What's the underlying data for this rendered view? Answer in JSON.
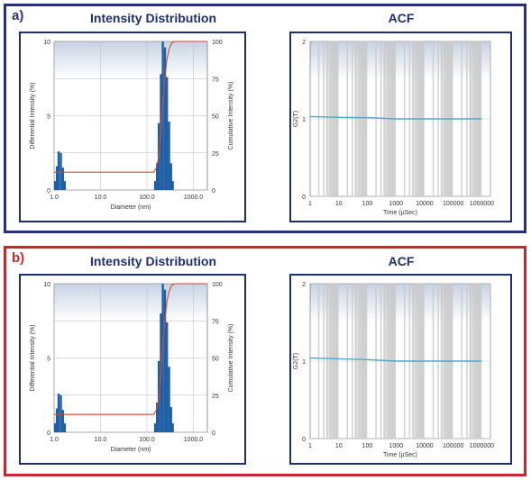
{
  "chart_data": [
    {
      "panel": "a)",
      "type": "bar",
      "title": "Intensity Distribution",
      "xlabel": "Diameter (nm)",
      "ylabel": "Differential Intensity (%)",
      "y2label": "Cumulative Intensity (%)",
      "xscale": "log",
      "xlim": [
        1.0,
        2000
      ],
      "xticks": [
        "1.0",
        "10.0",
        "100.0",
        "1000.0"
      ],
      "ylim": [
        0,
        10
      ],
      "yticks": [
        "0",
        "5",
        "10"
      ],
      "y2lim": [
        0,
        100
      ],
      "y2ticks": [
        "0",
        "25",
        "50",
        "75",
        "100"
      ],
      "bars": {
        "x": [
          1.05,
          1.15,
          1.25,
          1.4,
          1.55,
          1.7,
          150,
          165,
          180,
          200,
          220,
          245,
          270,
          300,
          330,
          360
        ],
        "y": [
          0.6,
          1.6,
          2.6,
          2.5,
          1.5,
          0.6,
          0.6,
          1.8,
          4.5,
          7.8,
          10.0,
          9.6,
          7.6,
          4.6,
          1.8,
          0.6
        ]
      },
      "cumulative": {
        "x": [
          1.0,
          1.8,
          140,
          160,
          180,
          200,
          220,
          245,
          270,
          300,
          340,
          400,
          2000
        ],
        "y": [
          12,
          12,
          12,
          15,
          22,
          38,
          58,
          76,
          88,
          95,
          99,
          100,
          100
        ]
      },
      "colors": {
        "bars": "#1f5fa6",
        "cumulative": "#d9472b",
        "border": "#2a2f7a"
      }
    },
    {
      "panel": "a)",
      "type": "line",
      "title": "ACF",
      "xlabel": "Time (µSec)",
      "ylabel": "G2(T)",
      "xscale": "log",
      "xlim": [
        1,
        2000000
      ],
      "xticks": [
        "1",
        "10",
        "100",
        "1000",
        "10000",
        "100000",
        "1000000"
      ],
      "ylim": [
        0,
        2
      ],
      "yticks": [
        "0",
        "1",
        "2"
      ],
      "series": [
        {
          "x": [
            1,
            10,
            100,
            1000,
            10000,
            100000,
            1000000
          ],
          "y": [
            1.03,
            1.02,
            1.015,
            1.0,
            1.0,
            1.0,
            1.0
          ]
        }
      ],
      "colors": {
        "line": "#4fa8c9",
        "band": "#c9c9c9"
      }
    },
    {
      "panel": "b)",
      "type": "bar",
      "title": "Intensity Distribution",
      "xlabel": "Diameter (nm)",
      "ylabel": "Differential Intensity (%)",
      "y2label": "Cumulative Intensity (%)",
      "xscale": "log",
      "xlim": [
        1.0,
        2000
      ],
      "xticks": [
        "1.0",
        "10.0",
        "100.0",
        "1000.0"
      ],
      "ylim": [
        0,
        10
      ],
      "yticks": [
        "0",
        "5",
        "10"
      ],
      "y2lim": [
        0,
        100
      ],
      "y2ticks": [
        "0",
        "25",
        "50",
        "75",
        "100"
      ],
      "bars": {
        "x": [
          1.05,
          1.15,
          1.25,
          1.4,
          1.55,
          1.7,
          150,
          165,
          180,
          200,
          220,
          245,
          270,
          300,
          330,
          360
        ],
        "y": [
          0.6,
          1.6,
          2.6,
          2.5,
          1.5,
          0.6,
          0.6,
          2.0,
          4.8,
          8.0,
          10.0,
          9.6,
          7.4,
          4.4,
          1.7,
          0.6
        ]
      },
      "cumulative": {
        "x": [
          1.0,
          1.8,
          140,
          160,
          180,
          200,
          220,
          245,
          270,
          300,
          340,
          400,
          2000
        ],
        "y": [
          12,
          12,
          12,
          15,
          22,
          38,
          58,
          76,
          88,
          95,
          99,
          100,
          100
        ]
      },
      "colors": {
        "bars": "#1f5fa6",
        "cumulative": "#d9472b",
        "border": "#c8262c"
      }
    },
    {
      "panel": "b)",
      "type": "line",
      "title": "ACF",
      "xlabel": "Time (µSec)",
      "ylabel": "G2(T)",
      "xscale": "log",
      "xlim": [
        1,
        2000000
      ],
      "xticks": [
        "1",
        "10",
        "100",
        "1000",
        "10000",
        "100000",
        "1000000"
      ],
      "ylim": [
        0,
        2
      ],
      "yticks": [
        "0",
        "1",
        "2"
      ],
      "series": [
        {
          "x": [
            1,
            10,
            100,
            1000,
            10000,
            100000,
            1000000
          ],
          "y": [
            1.04,
            1.03,
            1.02,
            1.0,
            1.0,
            1.0,
            1.0
          ]
        }
      ],
      "colors": {
        "line": "#4fa8c9",
        "band": "#c9c9c9"
      }
    }
  ]
}
